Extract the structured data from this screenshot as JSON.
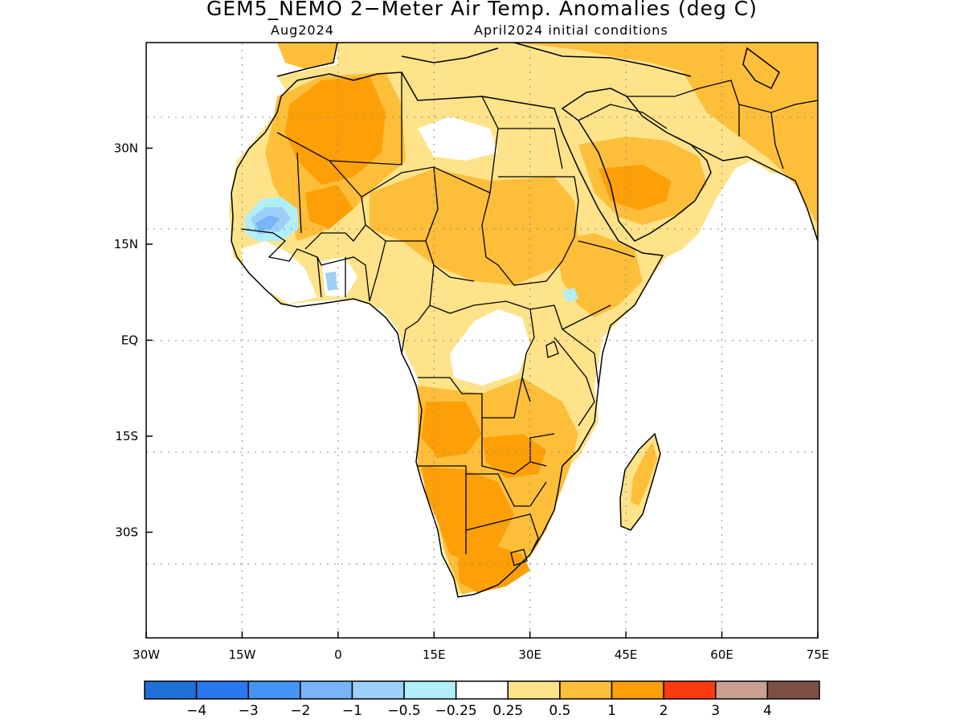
{
  "title": "GEM5_NEMO 2−Meter Air Temp. Anomalies (deg C)",
  "subtitle_left": "Aug2024",
  "subtitle_right": "April2024 initial conditions",
  "map": {
    "lon_range": [
      -30,
      75
    ],
    "lat_range": [
      -46.5,
      46.5
    ],
    "lon_ticks": [
      {
        "value": -30,
        "label": "30W"
      },
      {
        "value": -15,
        "label": "15W"
      },
      {
        "value": 0,
        "label": "0"
      },
      {
        "value": 15,
        "label": "15E"
      },
      {
        "value": 30,
        "label": "30E"
      },
      {
        "value": 45,
        "label": "45E"
      },
      {
        "value": 60,
        "label": "60E"
      },
      {
        "value": 75,
        "label": "75E"
      }
    ],
    "lat_ticks": [
      {
        "value": 30,
        "label": "30N"
      },
      {
        "value": 15,
        "label": "15N"
      },
      {
        "value": 0,
        "label": "EQ"
      },
      {
        "value": -15,
        "label": "15S"
      },
      {
        "value": -30,
        "label": "30S"
      }
    ],
    "grid": true,
    "gridlines_dotted": true
  },
  "colorbar": {
    "colors": [
      "#1f6fd8",
      "#2a78f0",
      "#4694f5",
      "#78b4f7",
      "#9dcff8",
      "#b1eef8",
      "#ffffff",
      "#fee38a",
      "#fdbe3a",
      "#fd9f07",
      "#fd3a10",
      "#c9a091",
      "#7b5047"
    ],
    "labels": [
      "−4",
      "−3",
      "−2",
      "−1",
      "−0.5",
      "−0.25",
      "0.25",
      "0.5",
      "1",
      "2",
      "3",
      "4"
    ]
  },
  "colors": {
    "anomaly_0_25_to_0_5": "#fee38a",
    "anomaly_0_5_to_1": "#fdbe3a",
    "anomaly_1_to_2": "#fd9f07",
    "anomaly_neg_0_5_to_neg_0_25": "#b1eef8",
    "anomaly_neg_1_to_neg_0_5": "#9dcff8",
    "anomaly_neg_2_to_neg_1": "#78b4f7"
  }
}
